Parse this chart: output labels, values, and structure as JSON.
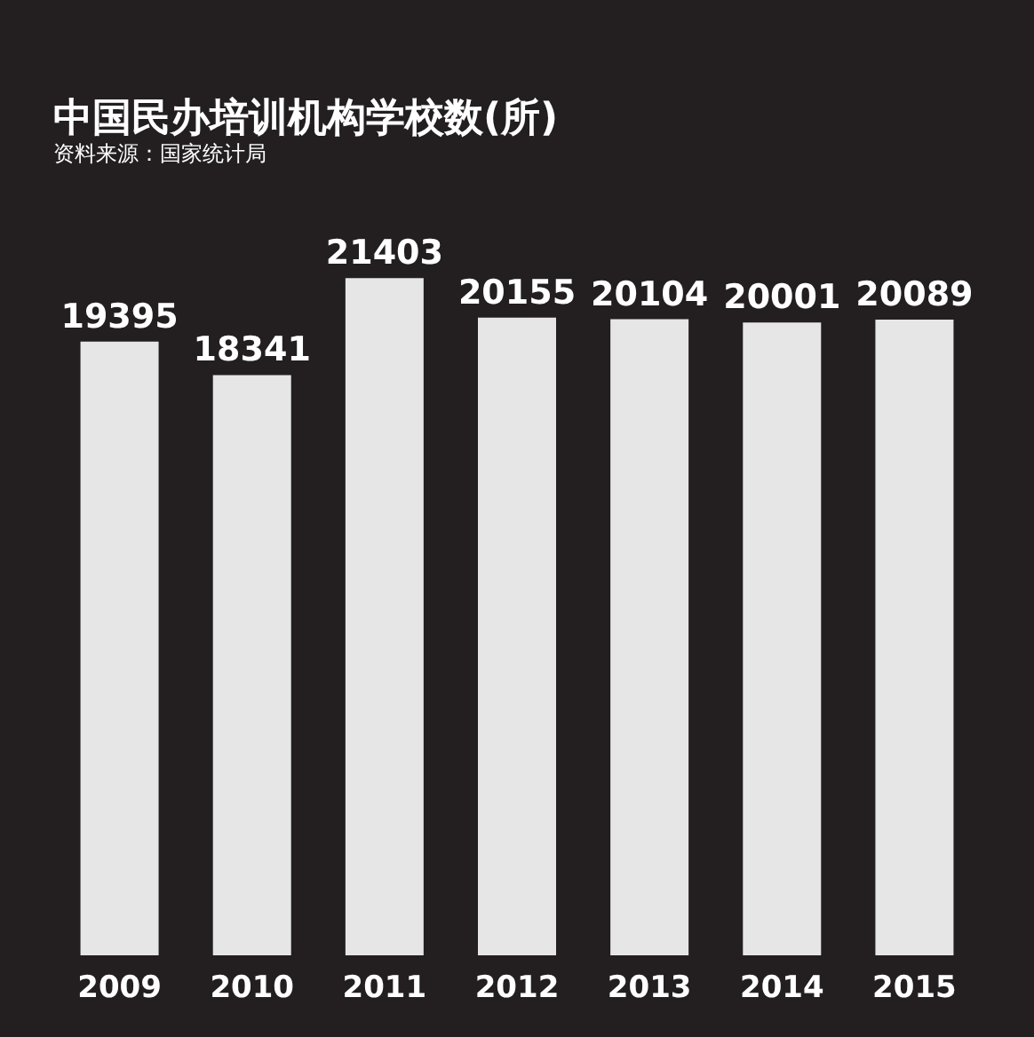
{
  "chart_data": {
    "type": "bar",
    "title": "中国民办培训机构学校数(所)",
    "subtitle": "资料来源：国家统计局",
    "categories": [
      "2009",
      "2010",
      "2011",
      "2012",
      "2013",
      "2014",
      "2015"
    ],
    "values": [
      19395,
      18341,
      21403,
      20155,
      20104,
      20001,
      20089
    ],
    "color": "#e6e6e6",
    "data_labels": true
  }
}
